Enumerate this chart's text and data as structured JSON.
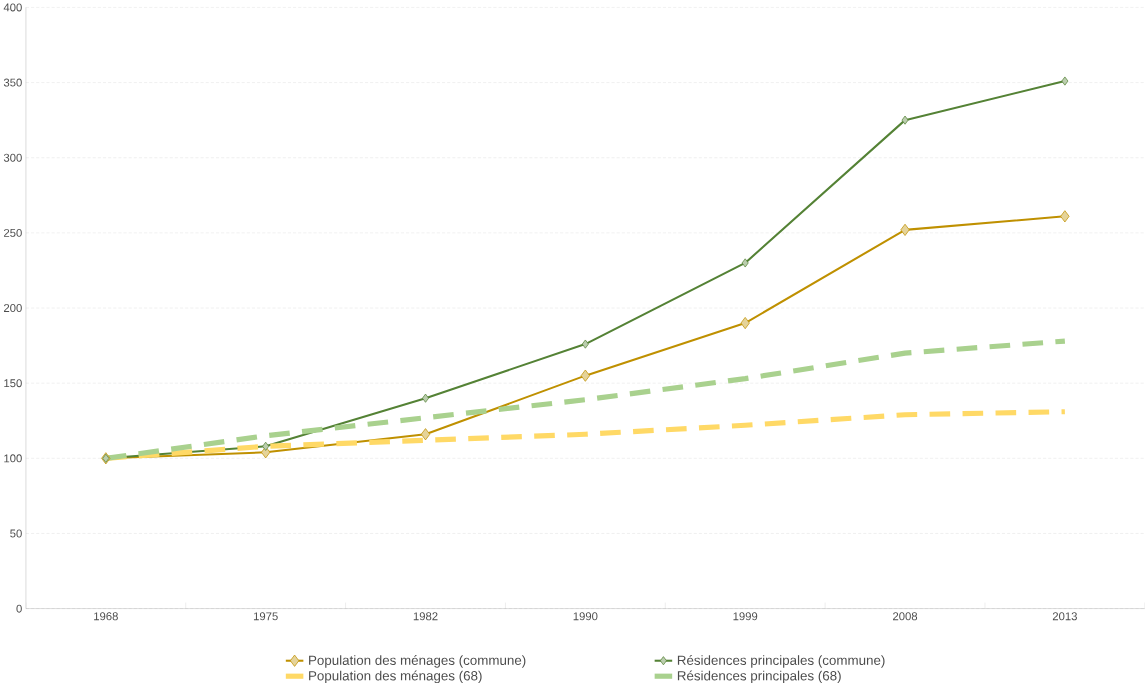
{
  "chart_data": {
    "type": "line",
    "categories": [
      "1968",
      "1975",
      "1982",
      "1990",
      "1999",
      "2008",
      "2013"
    ],
    "series": [
      {
        "name": "Population des ménages (commune)",
        "color": "#bf9000",
        "marker": "diamond",
        "line_style": "solid",
        "values": [
          100,
          104,
          116,
          155,
          190,
          252,
          261
        ]
      },
      {
        "name": "Résidences principales (commune)",
        "color": "#548235",
        "marker": "diamond",
        "line_style": "solid",
        "values": [
          100,
          108,
          140,
          176,
          230,
          325,
          351
        ]
      },
      {
        "name": "Population des ménages (68)",
        "color": "#ffd966",
        "marker": "none",
        "line_style": "dashed",
        "values": [
          100,
          108,
          112,
          116,
          122,
          129,
          131
        ]
      },
      {
        "name": "Résidences principales (68)",
        "color": "#a9d18e",
        "marker": "none",
        "line_style": "dashed",
        "values": [
          100,
          115,
          127,
          139,
          153,
          170,
          178
        ]
      }
    ],
    "ylim": [
      0,
      400
    ],
    "yticks": [
      0,
      50,
      100,
      150,
      200,
      250,
      300,
      350,
      400
    ],
    "grid": "y",
    "legend": "bottom"
  }
}
